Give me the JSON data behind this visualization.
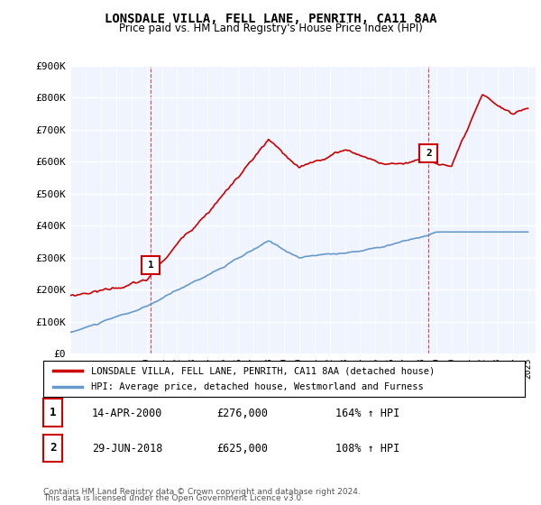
{
  "title": "LONSDALE VILLA, FELL LANE, PENRITH, CA11 8AA",
  "subtitle": "Price paid vs. HM Land Registry's House Price Index (HPI)",
  "ylabel": "",
  "ylim": [
    0,
    900000
  ],
  "yticks": [
    0,
    100000,
    200000,
    300000,
    400000,
    500000,
    600000,
    700000,
    800000,
    900000
  ],
  "ytick_labels": [
    "£0",
    "£100K",
    "£200K",
    "£300K",
    "£400K",
    "£500K",
    "£600K",
    "£700K",
    "£800K",
    "£900K"
  ],
  "background_color": "#ffffff",
  "plot_bg_color": "#f0f4ff",
  "grid_color": "#ffffff",
  "line1_color": "#cc0000",
  "line2_color": "#6699cc",
  "line1_label": "LONSDALE VILLA, FELL LANE, PENRITH, CA11 8AA (detached house)",
  "line2_label": "HPI: Average price, detached house, Westmorland and Furness",
  "sale1_date": 2000.28,
  "sale1_price": 276000,
  "sale1_label": "1",
  "sale2_date": 2018.49,
  "sale2_price": 625000,
  "sale2_label": "2",
  "footer1": "Contains HM Land Registry data © Crown copyright and database right 2024.",
  "footer2": "This data is licensed under the Open Government Licence v3.0.",
  "table_rows": [
    {
      "num": "1",
      "date": "14-APR-2000",
      "price": "£276,000",
      "hpi": "164% ↑ HPI"
    },
    {
      "num": "2",
      "date": "29-JUN-2018",
      "price": "£625,000",
      "hpi": "108% ↑ HPI"
    }
  ]
}
